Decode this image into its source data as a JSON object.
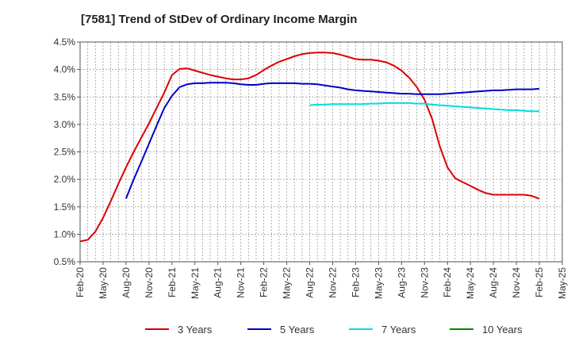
{
  "chart_data": {
    "type": "line",
    "title": "[7581]  Trend of StDev of Ordinary Income Margin",
    "xlabel": "",
    "ylabel": "",
    "x_tick_labels": [
      "Feb-20",
      "May-20",
      "Aug-20",
      "Nov-20",
      "Feb-21",
      "May-21",
      "Aug-21",
      "Nov-21",
      "Feb-22",
      "May-22",
      "Aug-22",
      "Nov-22",
      "Feb-23",
      "May-23",
      "Aug-23",
      "Nov-23",
      "Feb-24",
      "May-24",
      "Aug-24",
      "Nov-24",
      "Feb-25",
      "May-25"
    ],
    "y_tick_labels": [
      "0.5%",
      "1.0%",
      "1.5%",
      "2.0%",
      "2.5%",
      "3.0%",
      "3.5%",
      "4.0%",
      "4.5%"
    ],
    "ylim": [
      0.5,
      4.5
    ],
    "y_unit": "%",
    "grid": true,
    "legend_position": "bottom",
    "series": [
      {
        "name": "3 Years",
        "color": "#dd0000",
        "x": [
          "2020-02",
          "2020-03",
          "2020-04",
          "2020-05",
          "2020-06",
          "2020-07",
          "2020-08",
          "2020-09",
          "2020-10",
          "2020-11",
          "2020-12",
          "2021-01",
          "2021-02",
          "2021-03",
          "2021-04",
          "2021-05",
          "2021-06",
          "2021-07",
          "2021-08",
          "2021-09",
          "2021-10",
          "2021-11",
          "2021-12",
          "2022-01",
          "2022-02",
          "2022-03",
          "2022-04",
          "2022-05",
          "2022-06",
          "2022-07",
          "2022-08",
          "2022-09",
          "2022-10",
          "2022-11",
          "2022-12",
          "2023-01",
          "2023-02",
          "2023-03",
          "2023-04",
          "2023-05",
          "2023-06",
          "2023-07",
          "2023-08",
          "2023-09",
          "2023-10",
          "2023-11",
          "2023-12",
          "2024-01",
          "2024-02",
          "2024-03",
          "2024-04",
          "2024-05",
          "2024-06",
          "2024-07",
          "2024-08",
          "2024-09",
          "2024-10",
          "2024-11",
          "2024-12",
          "2025-01",
          "2025-02"
        ],
        "values": [
          0.87,
          0.9,
          1.05,
          1.3,
          1.6,
          1.92,
          2.22,
          2.5,
          2.76,
          3.02,
          3.3,
          3.58,
          3.9,
          4.01,
          4.02,
          3.98,
          3.94,
          3.9,
          3.87,
          3.84,
          3.82,
          3.82,
          3.84,
          3.9,
          3.99,
          4.07,
          4.14,
          4.19,
          4.24,
          4.28,
          4.3,
          4.31,
          4.31,
          4.3,
          4.27,
          4.23,
          4.19,
          4.18,
          4.18,
          4.16,
          4.13,
          4.07,
          3.98,
          3.85,
          3.68,
          3.45,
          3.1,
          2.6,
          2.22,
          2.02,
          1.95,
          1.88,
          1.81,
          1.75,
          1.72,
          1.72,
          1.72,
          1.72,
          1.72,
          1.7,
          1.65
        ]
      },
      {
        "name": "5 Years",
        "color": "#0000cc",
        "x": [
          "2020-08",
          "2020-09",
          "2020-10",
          "2020-11",
          "2020-12",
          "2021-01",
          "2021-02",
          "2021-03",
          "2021-04",
          "2021-05",
          "2021-06",
          "2021-07",
          "2021-08",
          "2021-09",
          "2021-10",
          "2021-11",
          "2021-12",
          "2022-01",
          "2022-02",
          "2022-03",
          "2022-04",
          "2022-05",
          "2022-06",
          "2022-07",
          "2022-08",
          "2022-09",
          "2022-10",
          "2022-11",
          "2022-12",
          "2023-01",
          "2023-02",
          "2023-03",
          "2023-04",
          "2023-05",
          "2023-06",
          "2023-07",
          "2023-08",
          "2023-09",
          "2023-10",
          "2023-11",
          "2023-12",
          "2024-01",
          "2024-02",
          "2024-03",
          "2024-04",
          "2024-05",
          "2024-06",
          "2024-07",
          "2024-08",
          "2024-09",
          "2024-10",
          "2024-11",
          "2024-12",
          "2025-01",
          "2025-02"
        ],
        "values": [
          1.65,
          2.0,
          2.32,
          2.65,
          2.98,
          3.3,
          3.52,
          3.68,
          3.73,
          3.75,
          3.75,
          3.76,
          3.76,
          3.76,
          3.75,
          3.73,
          3.72,
          3.72,
          3.74,
          3.75,
          3.75,
          3.75,
          3.75,
          3.74,
          3.74,
          3.73,
          3.71,
          3.69,
          3.67,
          3.64,
          3.62,
          3.61,
          3.6,
          3.59,
          3.58,
          3.57,
          3.56,
          3.56,
          3.55,
          3.55,
          3.55,
          3.55,
          3.56,
          3.57,
          3.58,
          3.59,
          3.6,
          3.61,
          3.62,
          3.62,
          3.63,
          3.64,
          3.64,
          3.64,
          3.65
        ]
      },
      {
        "name": "7 Years",
        "color": "#00dddd",
        "x": [
          "2022-08",
          "2022-09",
          "2022-10",
          "2022-11",
          "2022-12",
          "2023-01",
          "2023-02",
          "2023-03",
          "2023-04",
          "2023-05",
          "2023-06",
          "2023-07",
          "2023-08",
          "2023-09",
          "2023-10",
          "2023-11",
          "2023-12",
          "2024-01",
          "2024-02",
          "2024-03",
          "2024-04",
          "2024-05",
          "2024-06",
          "2024-07",
          "2024-08",
          "2024-09",
          "2024-10",
          "2024-11",
          "2024-12",
          "2025-01",
          "2025-02"
        ],
        "values": [
          3.35,
          3.36,
          3.36,
          3.37,
          3.37,
          3.37,
          3.37,
          3.37,
          3.38,
          3.38,
          3.39,
          3.39,
          3.39,
          3.39,
          3.38,
          3.38,
          3.36,
          3.35,
          3.34,
          3.33,
          3.32,
          3.31,
          3.3,
          3.29,
          3.28,
          3.27,
          3.26,
          3.26,
          3.25,
          3.24,
          3.24
        ]
      },
      {
        "name": "10 Years",
        "color": "#008800",
        "x": [],
        "values": []
      }
    ]
  }
}
